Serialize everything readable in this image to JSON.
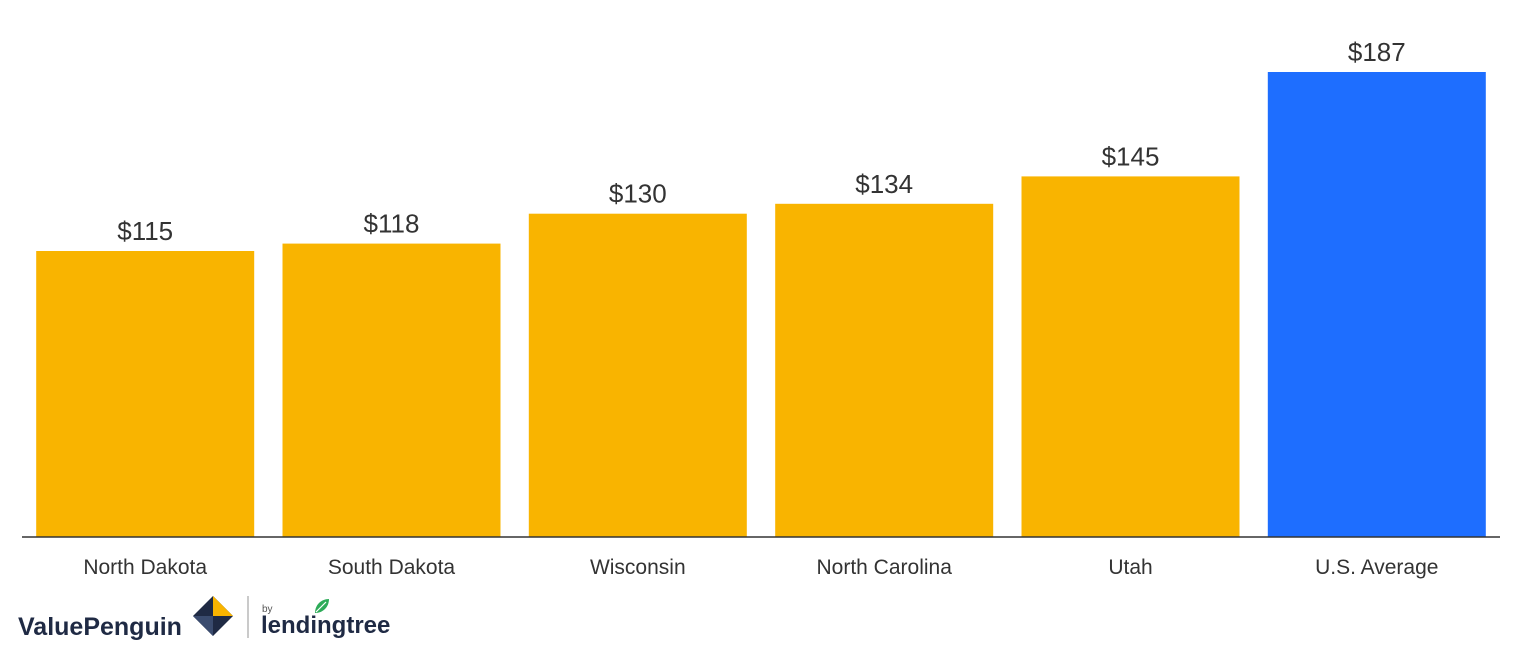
{
  "chart_data": {
    "type": "bar",
    "categories": [
      "North Dakota",
      "South Dakota",
      "Wisconsin",
      "North Carolina",
      "Utah",
      "U.S. Average"
    ],
    "values": [
      115,
      118,
      130,
      134,
      145,
      187
    ],
    "value_labels": [
      "$115",
      "$118",
      "$130",
      "$134",
      "$145",
      "$187"
    ],
    "title": "",
    "xlabel": "",
    "ylabel": "",
    "ylim": [
      0,
      187
    ],
    "grid": false,
    "legend": "none",
    "colors": {
      "default": "#F9B400",
      "highlight": "#1E6EFF",
      "axis": "#333333"
    },
    "highlight_index": 5
  },
  "branding": {
    "logo_text": "ValuePenguin",
    "by_text": "by",
    "partner_text": "lendingtree",
    "logo_icon": "valuepenguin-diamond-icon",
    "partner_icon": "lendingtree-leaf-icon"
  }
}
